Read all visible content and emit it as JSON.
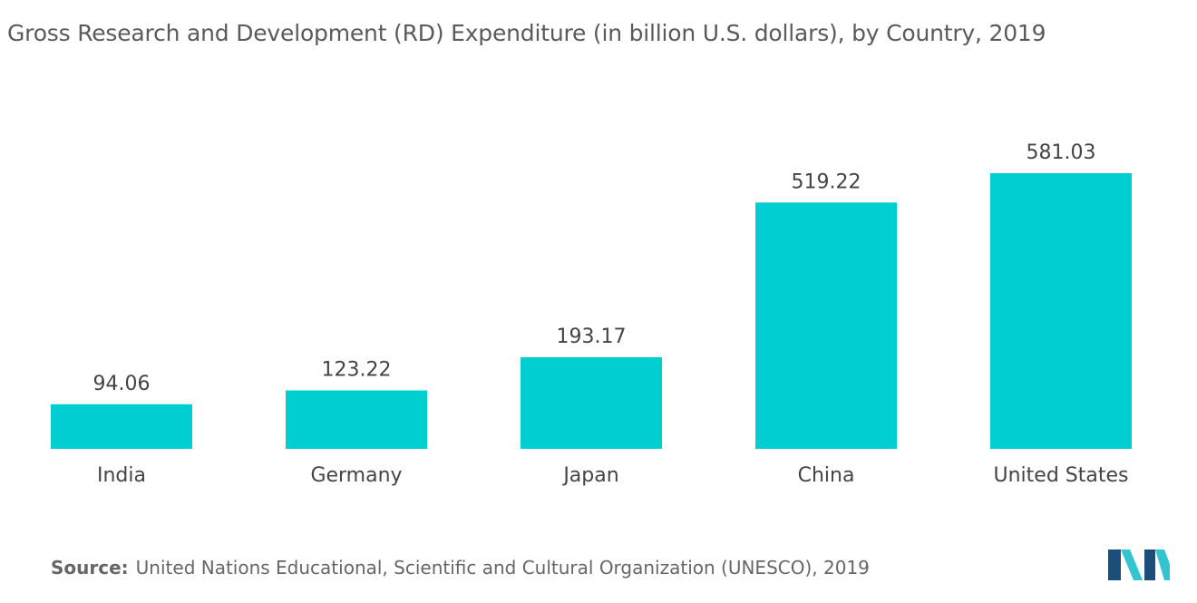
{
  "chart_data": {
    "type": "bar",
    "title": "Gross Research and Development (RD) Expenditure (in billion U.S. dollars), by Country, 2019",
    "categories": [
      "India",
      "Germany",
      "Japan",
      "China",
      "United States"
    ],
    "values": [
      94.06,
      123.22,
      193.17,
      519.22,
      581.03
    ],
    "value_labels": [
      "94.06",
      "123.22",
      "193.17",
      "519.22",
      "581.03"
    ],
    "ylim": [
      0,
      581.03
    ],
    "grid": false,
    "bar_color": "#00CED1"
  },
  "footer": {
    "source_label": "Source:",
    "source_text": "United Nations Educational, Scientific and Cultural Organization (UNESCO), 2019",
    "logo_icon": "mordor-intelligence-logo",
    "logo_colors": [
      "#1C4E7A",
      "#33C4CF"
    ]
  }
}
